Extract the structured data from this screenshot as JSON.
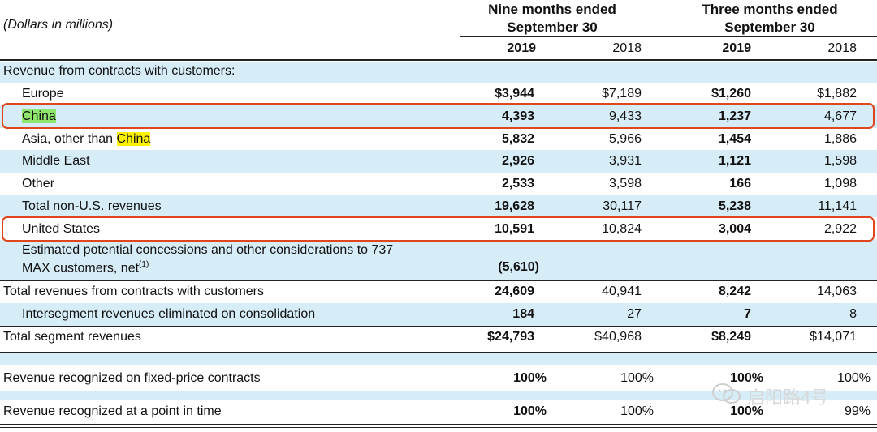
{
  "header": {
    "units_label": "(Dollars in millions)",
    "nine_months_line1": "Nine months ended",
    "nine_months_line2": "September 30",
    "three_months_line1": "Three months ended",
    "three_months_line2": "September 30",
    "years": [
      "2019",
      "2018",
      "2019",
      "2018"
    ]
  },
  "section_title": "Revenue from contracts with customers:",
  "rows": [
    {
      "label": "Europe",
      "values": [
        "$3,944",
        "$7,189",
        "$1,260",
        "$1,882"
      ]
    },
    {
      "label": "China",
      "values": [
        "4,393",
        "9,433",
        "1,237",
        "4,677"
      ]
    },
    {
      "label_prefix": "Asia, other than ",
      "label_highlight": "China",
      "values": [
        "5,832",
        "5,966",
        "1,454",
        "1,886"
      ]
    },
    {
      "label": "Middle East",
      "values": [
        "2,926",
        "3,931",
        "1,121",
        "1,598"
      ]
    },
    {
      "label": "Other",
      "values": [
        "2,533",
        "3,598",
        "166",
        "1,098"
      ]
    },
    {
      "label": "Total non-U.S. revenues",
      "values": [
        "19,628",
        "30,117",
        "5,238",
        "11,141"
      ]
    },
    {
      "label": "United States",
      "values": [
        "10,591",
        "10,824",
        "3,004",
        "2,922"
      ]
    },
    {
      "label_line1": "Estimated potential concessions and other considerations to 737",
      "label_line2": "MAX customers, net",
      "footnote": "(1)",
      "values": [
        "(5,610)",
        "",
        "",
        ""
      ]
    },
    {
      "label": "Total revenues from contracts with customers",
      "values": [
        "24,609",
        "40,941",
        "8,242",
        "14,063"
      ]
    },
    {
      "label": "Intersegment revenues eliminated on consolidation",
      "values": [
        "184",
        "27",
        "7",
        "8"
      ]
    },
    {
      "label": "Total segment revenues",
      "values": [
        "$24,793",
        "$40,968",
        "$8,249",
        "$14,071"
      ]
    },
    {
      "label": "Revenue recognized on fixed-price contracts",
      "values": [
        "100%",
        "100%",
        "100%",
        "100%"
      ]
    },
    {
      "label": "Revenue recognized at a point in time",
      "values": [
        "100%",
        "100%",
        "100%",
        "99%"
      ]
    }
  ],
  "watermark": "启阳路4号",
  "colors": {
    "row_blue": "#d6ecf7",
    "box_red": "#e0461e",
    "highlight_green": "#8ee66c",
    "highlight_yellow": "#fff200"
  }
}
